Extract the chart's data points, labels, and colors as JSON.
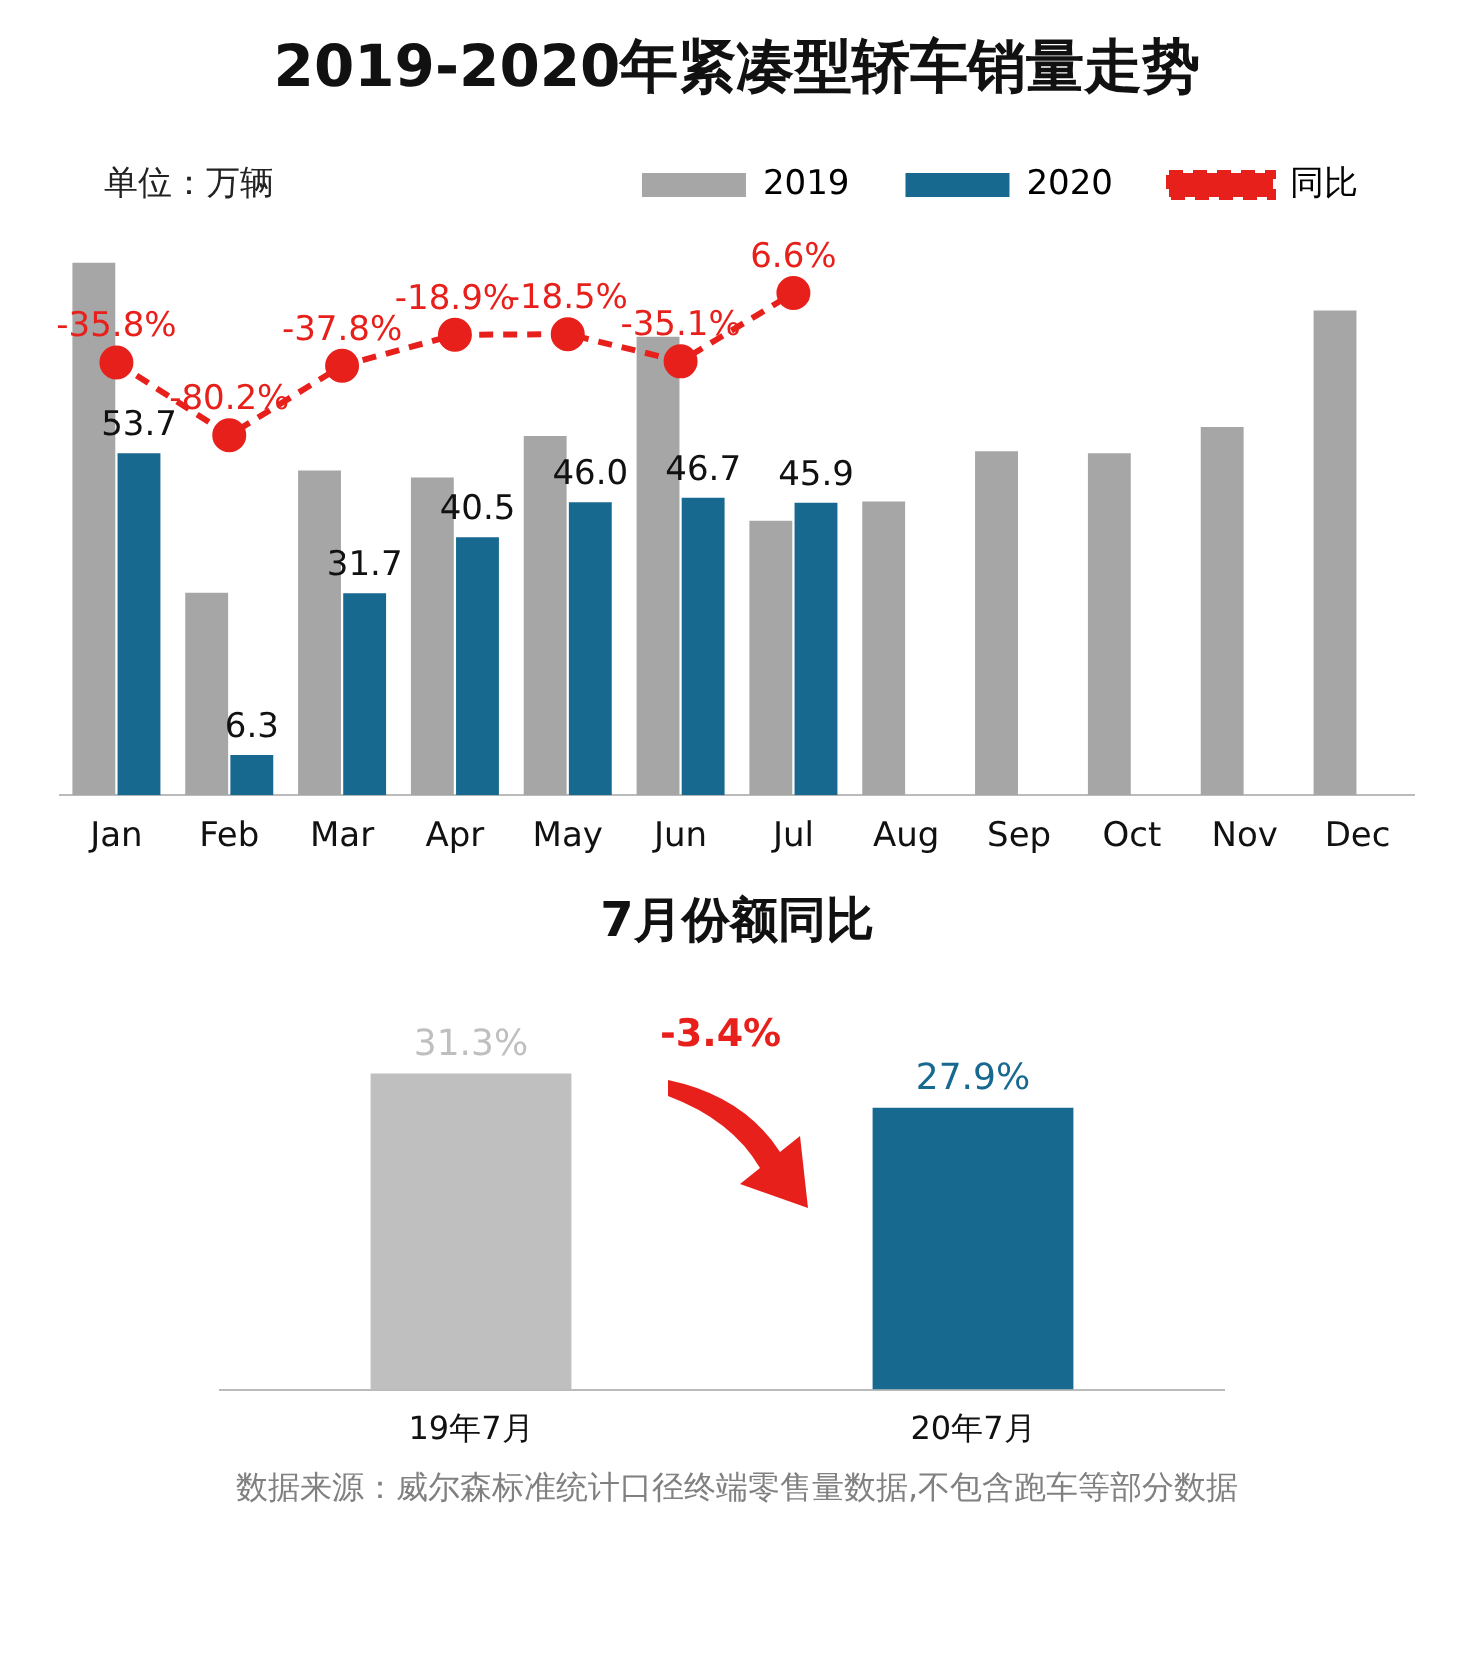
{
  "chart_data": [
    {
      "type": "bar",
      "title": "2019-2020年紧凑型轿车销量走势",
      "categories": [
        "Jan",
        "Feb",
        "Mar",
        "Apr",
        "May",
        "Jun",
        "Jul",
        "Aug",
        "Sep",
        "Oct",
        "Nov",
        "Dec"
      ],
      "series": [
        {
          "name": "2019",
          "color": "#a6a6a6",
          "values": [
            83.6,
            31.8,
            51.0,
            49.9,
            56.4,
            72.0,
            43.1,
            46.1,
            54.0,
            53.7,
            57.8,
            76.1
          ]
        },
        {
          "name": "2020",
          "color": "#17698f",
          "values": [
            53.7,
            6.3,
            31.7,
            40.5,
            46.0,
            46.7,
            45.9,
            null,
            null,
            null,
            null,
            null
          ],
          "value_labels": [
            "53.7",
            "6.3",
            "31.7",
            "40.5",
            "46.0",
            "46.7",
            "45.9",
            null,
            null,
            null,
            null,
            null
          ]
        },
        {
          "name": "同比",
          "type": "line",
          "axis": "y2",
          "color": "#e8201c",
          "line_style": "dashed",
          "marker": "circle",
          "values": [
            -35.8,
            -80.2,
            -37.8,
            -18.9,
            -18.5,
            -35.1,
            6.6,
            null,
            null,
            null,
            null,
            null
          ],
          "value_labels": [
            "-35.8%",
            "-80.2%",
            "-37.8%",
            "-18.9%",
            "-18.5%",
            "-35.1%",
            "6.6%",
            null,
            null,
            null,
            null,
            null
          ]
        }
      ],
      "legend": "top",
      "tick_labels": "x",
      "annotations": [
        "单位：万辆"
      ]
    },
    {
      "type": "bar",
      "title": "7月份额同比",
      "categories": [
        "19年7月",
        "20年7月"
      ],
      "values": [
        31.3,
        27.9
      ],
      "colors": [
        "#bfbfbf",
        "#17698f"
      ],
      "value_labels": [
        "31.3%",
        "27.9%"
      ],
      "tick_labels": "x",
      "annotations": [
        "-3.4%",
        "数据来源：威尔森标准统计口径终端零售量数据,不包含跑车等部分数据"
      ]
    }
  ]
}
